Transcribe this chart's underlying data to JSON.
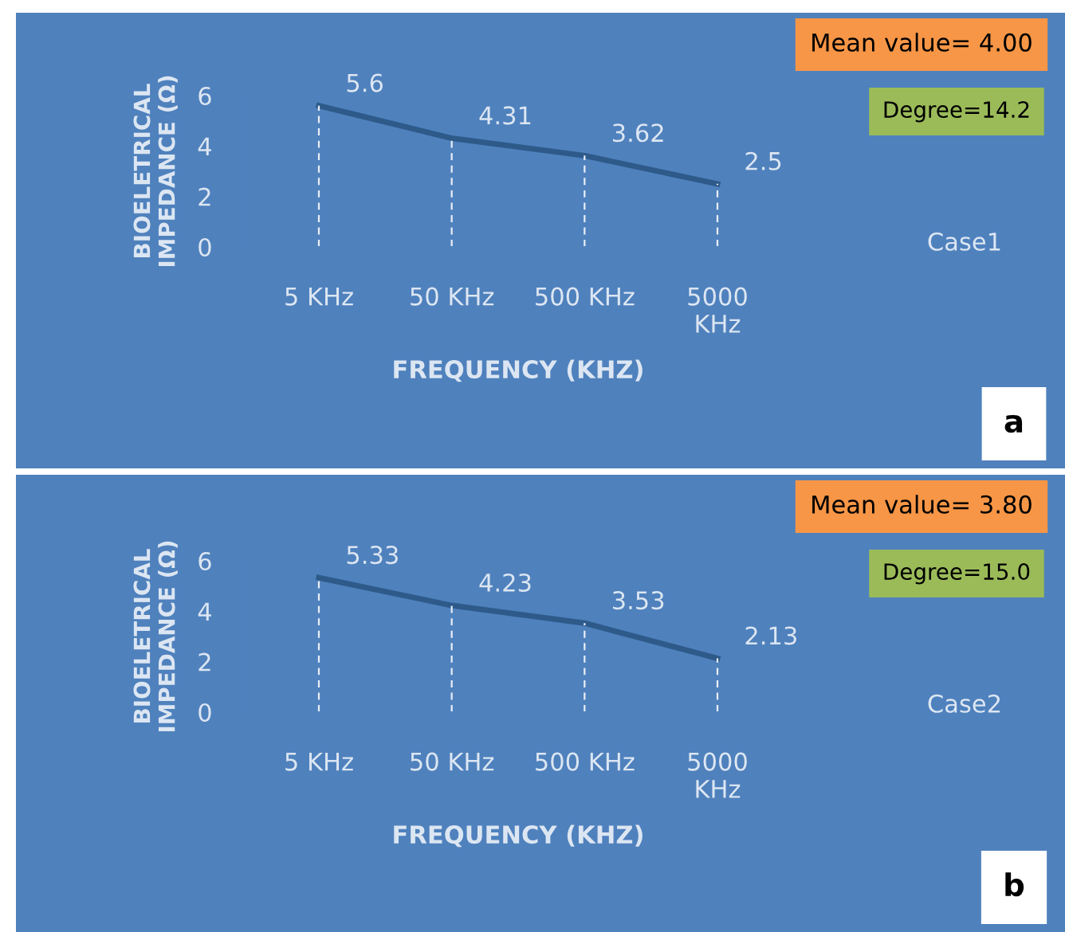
{
  "chart_data": [
    {
      "type": "line",
      "xlabel": "FREQUENCY (KHZ)",
      "ylabel": "BIOELETRICAL\nIMPEDANCE (Ω)",
      "categories": [
        "5 KHz",
        "50 KHz",
        "500 KHz",
        "5000 KHz"
      ],
      "series": [
        {
          "color": "#2e5a8a",
          "values": [
            5.6,
            4.31,
            3.62,
            2.5
          ]
        }
      ],
      "ylim": [
        0,
        6
      ],
      "yticks": [
        0,
        2,
        4,
        6
      ],
      "data_labels": true,
      "grid": "x",
      "legend": false,
      "marker": "none",
      "line_style": "solid",
      "annotations": [
        "Mean value= 4.00",
        "Degree=14.2",
        "Case1",
        "a"
      ]
    },
    {
      "type": "line",
      "xlabel": "FREQUENCY (KHZ)",
      "ylabel": "BIOELETRICAL\nIMPEDANCE (Ω)",
      "categories": [
        "5 KHz",
        "50 KHz",
        "500 KHz",
        "5000 KHz"
      ],
      "series": [
        {
          "color": "#2e5a8a",
          "values": [
            5.33,
            4.23,
            3.53,
            2.13
          ]
        }
      ],
      "ylim": [
        0,
        6
      ],
      "yticks": [
        0,
        2,
        4,
        6
      ],
      "data_labels": true,
      "grid": "x",
      "legend": false,
      "marker": "none",
      "line_style": "solid",
      "annotations": [
        "Mean value= 3.80",
        "Degree=15.0",
        "Case2",
        "b"
      ]
    }
  ]
}
